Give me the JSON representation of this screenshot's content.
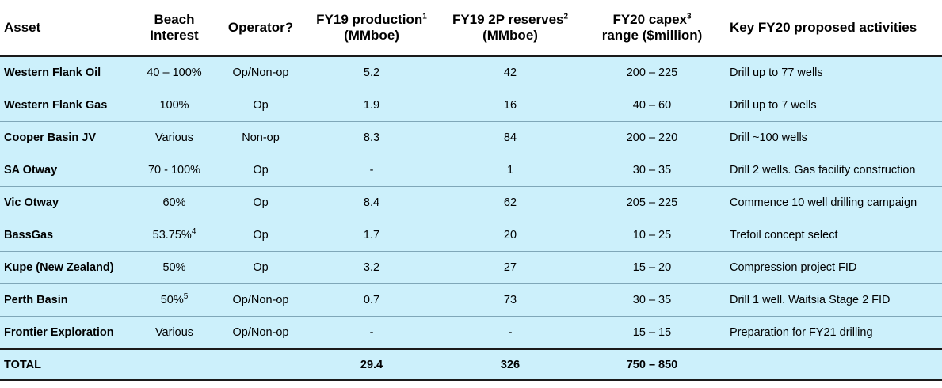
{
  "headers": {
    "asset": "Asset",
    "interest_l1": "Beach",
    "interest_l2": "Interest",
    "operator": "Operator?",
    "production_l1": "FY19 production",
    "production_sup": "1",
    "production_l2": "(MMboe)",
    "reserves_l1": "FY19 2P reserves",
    "reserves_sup": "2",
    "reserves_l2": "(MMboe)",
    "capex_l1": "FY20 capex",
    "capex_sup": "3",
    "capex_l2": "range ($million)",
    "activities": "Key FY20 proposed activities"
  },
  "rows": [
    {
      "asset": "Western Flank Oil",
      "interest": "40 – 100%",
      "interest_sup": "",
      "operator": "Op/Non-op",
      "production": "5.2",
      "reserves": "42",
      "capex": "200 – 225",
      "activities": "Drill up to 77 wells"
    },
    {
      "asset": "Western Flank Gas",
      "interest": "100%",
      "interest_sup": "",
      "operator": "Op",
      "production": "1.9",
      "reserves": "16",
      "capex": "40 – 60",
      "activities": "Drill up to 7 wells"
    },
    {
      "asset": "Cooper Basin JV",
      "interest": "Various",
      "interest_sup": "",
      "operator": "Non-op",
      "production": "8.3",
      "reserves": "84",
      "capex": "200 – 220",
      "activities": "Drill ~100 wells"
    },
    {
      "asset": "SA Otway",
      "interest": "70 - 100%",
      "interest_sup": "",
      "operator": "Op",
      "production": "-",
      "reserves": "1",
      "capex": "30 – 35",
      "activities": "Drill 2 wells. Gas facility construction"
    },
    {
      "asset": "Vic Otway",
      "interest": "60%",
      "interest_sup": "",
      "operator": "Op",
      "production": "8.4",
      "reserves": "62",
      "capex": "205 – 225",
      "activities": "Commence 10 well drilling campaign"
    },
    {
      "asset": "BassGas",
      "interest": "53.75%",
      "interest_sup": "4",
      "operator": "Op",
      "production": "1.7",
      "reserves": "20",
      "capex": "10 – 25",
      "activities": "Trefoil concept select"
    },
    {
      "asset": "Kupe (New Zealand)",
      "interest": "50%",
      "interest_sup": "",
      "operator": "Op",
      "production": "3.2",
      "reserves": "27",
      "capex": "15 – 20",
      "activities": "Compression project FID"
    },
    {
      "asset": "Perth Basin",
      "interest": "50%",
      "interest_sup": "5",
      "operator": "Op/Non-op",
      "production": "0.7",
      "reserves": "73",
      "capex": "30 – 35",
      "activities": "Drill 1 well. Waitsia Stage 2 FID"
    },
    {
      "asset": "Frontier Exploration",
      "interest": "Various",
      "interest_sup": "",
      "operator": "Op/Non-op",
      "production": "-",
      "reserves": "-",
      "capex": "15 – 15",
      "activities": "Preparation for FY21 drilling"
    }
  ],
  "total": {
    "label": "TOTAL",
    "production": "29.4",
    "reserves": "326",
    "capex": "750 – 850"
  }
}
